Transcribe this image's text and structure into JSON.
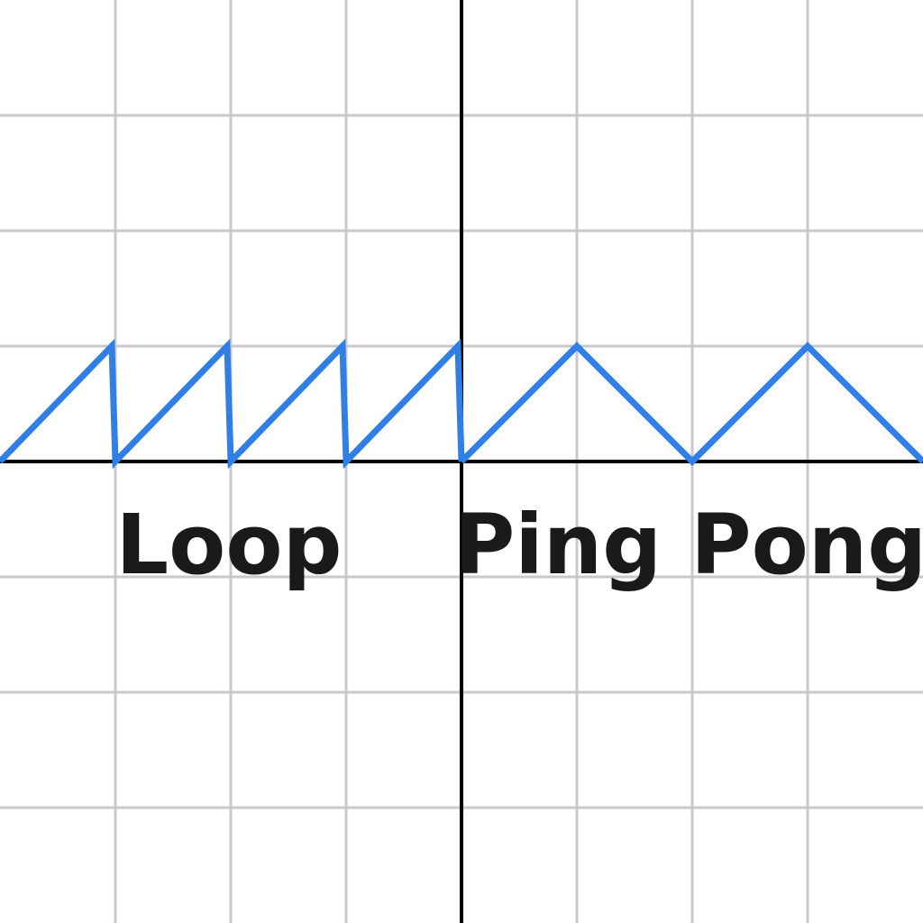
{
  "colors": {
    "background": "#ffffff",
    "grid": "#c8c8c8",
    "axis": "#000000",
    "waveform": "#2f7fe6",
    "text": "#1a1a1a"
  },
  "labels": {
    "left": "Loop",
    "right": "Ping Pong"
  },
  "grid": {
    "divisions": 8
  },
  "waveforms": {
    "loop": {
      "type": "sawtooth",
      "cycles": 4,
      "amplitude_cells": 1,
      "period_cells": 1
    },
    "ping_pong": {
      "type": "triangle",
      "cycles": 2,
      "amplitude_cells": 1,
      "period_cells": 2
    }
  }
}
